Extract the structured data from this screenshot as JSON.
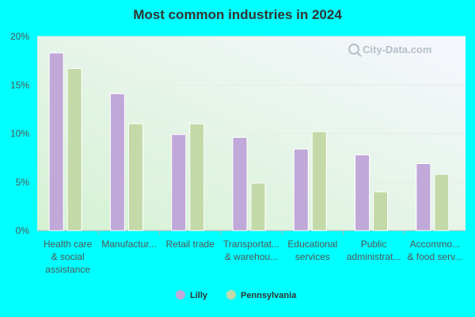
{
  "chart_data": {
    "type": "bar",
    "title": "Most common industries in 2024",
    "xlabel": "",
    "ylabel": "",
    "ylim": [
      0,
      20
    ],
    "y_ticks": [
      "0%",
      "5%",
      "10%",
      "15%",
      "20%"
    ],
    "y_tick_values": [
      0,
      5,
      10,
      15,
      20
    ],
    "grid": true,
    "legend_position": "bottom-center",
    "categories": [
      [
        "Health care",
        "& social",
        "assistance"
      ],
      [
        "Manufactur..."
      ],
      [
        "Retail trade"
      ],
      [
        "Transportat...",
        "& warehou..."
      ],
      [
        "Educational",
        "services"
      ],
      [
        "Public",
        "administrat..."
      ],
      [
        "Accommo...",
        "& food serv..."
      ]
    ],
    "series": [
      {
        "name": "Lilly",
        "color": "#c0a8d8",
        "values": [
          18.3,
          14.1,
          9.9,
          9.6,
          8.4,
          7.8,
          6.9
        ]
      },
      {
        "name": "Pennsylvania",
        "color": "#c4d9a8",
        "values": [
          16.7,
          11.0,
          11.0,
          4.9,
          10.2,
          4.0,
          5.8
        ]
      }
    ]
  },
  "watermark": "City-Data.com"
}
